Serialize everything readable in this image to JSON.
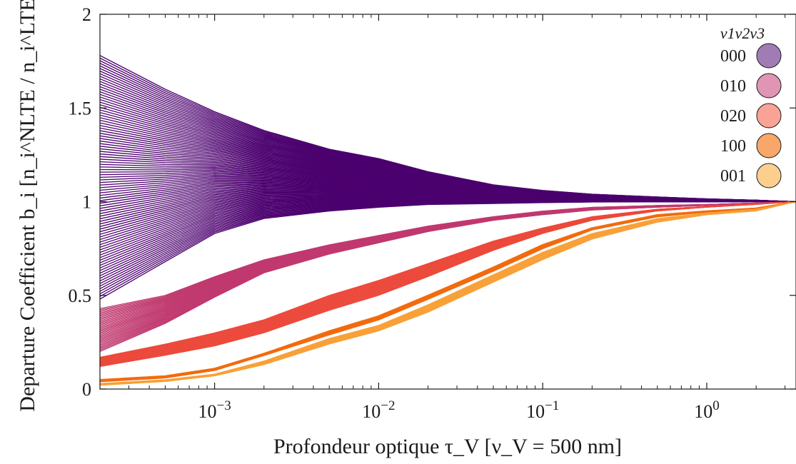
{
  "chart_data": {
    "type": "line",
    "title": "",
    "xlabel": "Profondeur optique τ_V [ν_V = 500 nm]",
    "ylabel": "Departure Coefficient b_i [n_i^NLTE / n_i^LTE]",
    "xscale": "log",
    "xlim": [
      0.0002,
      3.5
    ],
    "ylim": [
      0,
      2
    ],
    "xticks": [
      0.001,
      0.01,
      0.1,
      1
    ],
    "xtick_labels": [
      "10^-3",
      "10^-2",
      "10^-1",
      "10^0"
    ],
    "yticks": [
      0,
      0.5,
      1,
      1.5,
      2
    ],
    "ytick_labels": [
      "0",
      "0.5",
      "1",
      "1.5",
      "2"
    ],
    "grid": false,
    "legend_position": "top-right",
    "legend_title": "v1v2v3",
    "x_anchor": [
      0.0002,
      0.0005,
      0.001,
      0.002,
      0.005,
      0.01,
      0.02,
      0.05,
      0.1,
      0.2,
      0.5,
      1,
      2,
      3.5
    ],
    "series": [
      {
        "name": "000",
        "color": "#4b006e",
        "legend_color": "#a07cb4",
        "line_count": 95,
        "line_width": 1.3,
        "band_min": [
          0.48,
          0.68,
          0.83,
          0.91,
          0.95,
          0.97,
          0.985,
          0.99,
          0.995,
          0.998,
          0.999,
          0.999,
          1.0,
          1.0
        ],
        "band_max": [
          1.78,
          1.6,
          1.48,
          1.38,
          1.28,
          1.23,
          1.16,
          1.09,
          1.06,
          1.04,
          1.025,
          1.015,
          1.008,
          1.0
        ]
      },
      {
        "name": "010",
        "color": "#c0396f",
        "legend_color": "#e095b4",
        "line_count": 40,
        "line_width": 1.1,
        "band_min": [
          0.2,
          0.35,
          0.49,
          0.62,
          0.72,
          0.78,
          0.84,
          0.9,
          0.93,
          0.955,
          0.97,
          0.98,
          0.99,
          1.0
        ],
        "band_max": [
          0.43,
          0.5,
          0.6,
          0.69,
          0.77,
          0.82,
          0.87,
          0.92,
          0.95,
          0.97,
          0.98,
          0.985,
          0.993,
          1.0
        ]
      },
      {
        "name": "020",
        "color": "#ec4a3c",
        "legend_color": "#f8a395",
        "line_count": 30,
        "line_width": 1.0,
        "band_min": [
          0.12,
          0.18,
          0.23,
          0.3,
          0.42,
          0.5,
          0.6,
          0.74,
          0.83,
          0.9,
          0.95,
          0.97,
          0.985,
          1.0
        ],
        "band_max": [
          0.17,
          0.24,
          0.3,
          0.37,
          0.5,
          0.58,
          0.67,
          0.79,
          0.86,
          0.92,
          0.96,
          0.975,
          0.99,
          1.0
        ]
      },
      {
        "name": "100",
        "color": "#f26b0f",
        "legend_color": "#f9a66b",
        "line_count": 12,
        "line_width": 1.8,
        "band_min": [
          0.04,
          0.06,
          0.1,
          0.18,
          0.29,
          0.37,
          0.48,
          0.63,
          0.75,
          0.85,
          0.92,
          0.945,
          0.96,
          1.0
        ],
        "band_max": [
          0.05,
          0.07,
          0.11,
          0.19,
          0.31,
          0.39,
          0.5,
          0.65,
          0.77,
          0.86,
          0.93,
          0.95,
          0.965,
          1.0
        ]
      },
      {
        "name": "001",
        "color": "#f8a13a",
        "legend_color": "#fccf8f",
        "line_count": 20,
        "line_width": 1.0,
        "band_min": [
          0.02,
          0.04,
          0.07,
          0.13,
          0.24,
          0.31,
          0.41,
          0.57,
          0.69,
          0.8,
          0.89,
          0.93,
          0.95,
          1.0
        ],
        "band_max": [
          0.03,
          0.05,
          0.08,
          0.15,
          0.27,
          0.34,
          0.45,
          0.61,
          0.73,
          0.83,
          0.91,
          0.94,
          0.96,
          1.0
        ]
      }
    ]
  }
}
